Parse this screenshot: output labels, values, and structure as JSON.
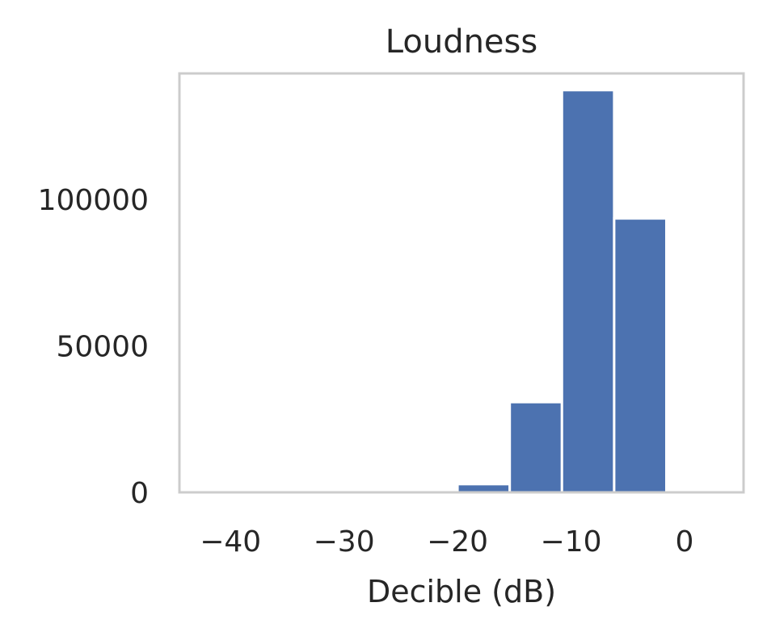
{
  "chart_data": {
    "type": "bar",
    "title": "Loudness",
    "xlabel": "Decible (dB)",
    "ylabel": "",
    "xlim": [
      -44.5,
      5.2
    ],
    "ylim": [
      0,
      143000
    ],
    "x_ticks": [
      {
        "value": -40,
        "label": "−40"
      },
      {
        "value": -30,
        "label": "−30"
      },
      {
        "value": -20,
        "label": "−20"
      },
      {
        "value": -10,
        "label": "−10"
      },
      {
        "value": 0,
        "label": "0"
      }
    ],
    "y_ticks": [
      {
        "value": 0,
        "label": "0"
      },
      {
        "value": 50000,
        "label": "50000"
      },
      {
        "value": 100000,
        "label": "100000"
      }
    ],
    "grid": false,
    "bins": [
      {
        "x0": -43.0,
        "x1": -38.4,
        "count": 0
      },
      {
        "x0": -38.4,
        "x1": -33.8,
        "count": 0
      },
      {
        "x0": -33.8,
        "x1": -29.2,
        "count": 0
      },
      {
        "x0": -29.2,
        "x1": -24.6,
        "count": 100
      },
      {
        "x0": -24.6,
        "x1": -20.0,
        "count": 300
      },
      {
        "x0": -20.0,
        "x1": -15.4,
        "count": 2800
      },
      {
        "x0": -15.4,
        "x1": -10.8,
        "count": 30800
      },
      {
        "x0": -10.8,
        "x1": -6.2,
        "count": 137300
      },
      {
        "x0": -6.2,
        "x1": -1.6,
        "count": 93500
      },
      {
        "x0": -1.6,
        "x1": 3.0,
        "count": 200
      }
    ]
  }
}
